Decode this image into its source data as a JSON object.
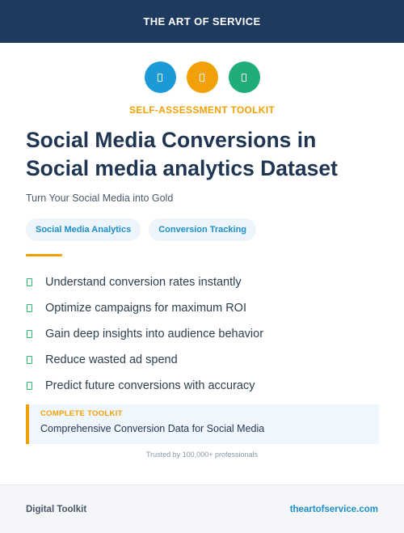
{
  "header": {
    "brand": "THE ART OF SERVICE"
  },
  "icons": [
    {
      "name": "document-icon",
      "color": "#1a9ad6"
    },
    {
      "name": "document-icon",
      "color": "#f2a007"
    },
    {
      "name": "document-icon",
      "color": "#21ad7a"
    }
  ],
  "kicker": "SELF-ASSESSMENT TOOLKIT",
  "title": {
    "line1": "Social Media Conversions in",
    "line2": "Social media analytics Dataset"
  },
  "subtitle": "Turn Your Social Media into Gold",
  "tags": [
    "Social Media Analytics",
    "Conversion Tracking"
  ],
  "features": [
    "Understand conversion rates instantly",
    "Optimize campaigns for maximum ROI",
    "Gain deep insights into audience behavior",
    "Reduce wasted ad spend",
    "Predict future conversions with accuracy"
  ],
  "callout": {
    "kicker": "COMPLETE TOOLKIT",
    "text": "Comprehensive Conversion Data for Social Media"
  },
  "trusted": "Trusted by 100,000+ professionals",
  "footer": {
    "left": "Digital Toolkit",
    "right": "theartofservice.com"
  },
  "colors": {
    "navy": "#1e3a5f",
    "accent_orange": "#f2a007",
    "accent_blue": "#1a9ad6",
    "accent_green": "#21ad7a",
    "check_green": "#2bb673"
  }
}
